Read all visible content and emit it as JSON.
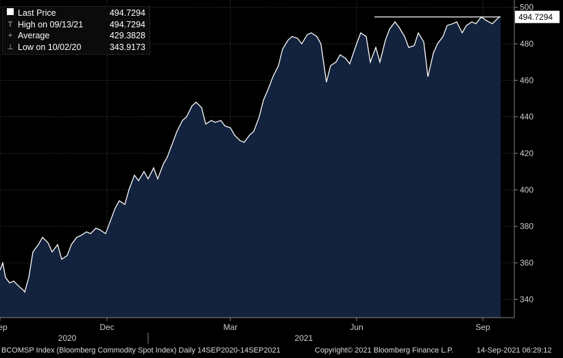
{
  "legend": [
    {
      "marker": "square",
      "label": "Last Price",
      "value": "494.7294"
    },
    {
      "marker": "T",
      "label": "High on 09/13/21",
      "value": "494.7294"
    },
    {
      "marker": "+",
      "label": "Average",
      "value": "429.3828"
    },
    {
      "marker": "⊥",
      "label": "Low on 10/02/20",
      "value": "343.9173"
    }
  ],
  "last_price_tag": "494.7294",
  "footer": {
    "left": "BCOMSP Index (Bloomberg Commodity Spot Index)  Daily 14SEP2020-14SEP2021",
    "copyright": "Copyright© 2021 Bloomberg Finance L.P.",
    "timestamp": "14-Sep-2021 06:29:12"
  },
  "colors": {
    "background": "#000000",
    "area_fill": "#13223d",
    "line": "#ffffff",
    "grid": "#4a4a4a"
  },
  "chart_data": {
    "type": "area",
    "ylim": [
      330,
      504
    ],
    "y_ticks": [
      340,
      360,
      380,
      400,
      420,
      440,
      460,
      480,
      500
    ],
    "x_ticks": [
      {
        "label": "Sep",
        "date": "2020-09-14"
      },
      {
        "label": "Dec",
        "date": "2020-12-01"
      },
      {
        "label": "Mar",
        "date": "2021-03-01"
      },
      {
        "label": "Jun",
        "date": "2021-06-01"
      },
      {
        "label": "Sep",
        "date": "2021-09-01"
      }
    ],
    "year_labels": [
      {
        "label": "2020"
      },
      {
        "label": "2021"
      }
    ],
    "x_range": [
      "2020-09-14",
      "2021-09-14"
    ],
    "high_line": 494.7294,
    "grid": true,
    "series": [
      {
        "x": [
          "2020-09-14",
          "2020-09-16",
          "2020-09-18",
          "2020-09-21",
          "2020-09-24",
          "2020-09-28",
          "2020-10-01",
          "2020-10-02",
          "2020-10-05",
          "2020-10-08",
          "2020-10-12",
          "2020-10-15",
          "2020-10-19",
          "2020-10-22",
          "2020-10-26",
          "2020-10-29",
          "2020-11-02",
          "2020-11-05",
          "2020-11-09",
          "2020-11-12",
          "2020-11-16",
          "2020-11-19",
          "2020-11-23",
          "2020-11-26",
          "2020-11-30",
          "2020-12-03",
          "2020-12-07",
          "2020-12-10",
          "2020-12-14",
          "2020-12-17",
          "2020-12-21",
          "2020-12-24",
          "2020-12-28",
          "2020-12-31",
          "2021-01-04",
          "2021-01-07",
          "2021-01-11",
          "2021-01-14",
          "2021-01-18",
          "2021-01-21",
          "2021-01-25",
          "2021-01-28",
          "2021-02-01",
          "2021-02-04",
          "2021-02-08",
          "2021-02-11",
          "2021-02-15",
          "2021-02-18",
          "2021-02-22",
          "2021-02-25",
          "2021-03-01",
          "2021-03-04",
          "2021-03-08",
          "2021-03-11",
          "2021-03-15",
          "2021-03-18",
          "2021-03-22",
          "2021-03-25",
          "2021-03-29",
          "2021-04-01",
          "2021-04-05",
          "2021-04-08",
          "2021-04-12",
          "2021-04-15",
          "2021-04-19",
          "2021-04-22",
          "2021-04-26",
          "2021-04-29",
          "2021-05-03",
          "2021-05-06",
          "2021-05-10",
          "2021-05-13",
          "2021-05-17",
          "2021-05-20",
          "2021-05-24",
          "2021-05-27",
          "2021-06-01",
          "2021-06-04",
          "2021-06-08",
          "2021-06-11",
          "2021-06-15",
          "2021-06-18",
          "2021-06-22",
          "2021-06-25",
          "2021-06-29",
          "2021-07-02",
          "2021-07-06",
          "2021-07-09",
          "2021-07-13",
          "2021-07-16",
          "2021-07-20",
          "2021-07-23",
          "2021-07-27",
          "2021-07-30",
          "2021-08-03",
          "2021-08-06",
          "2021-08-10",
          "2021-08-13",
          "2021-08-17",
          "2021-08-20",
          "2021-08-24",
          "2021-08-27",
          "2021-08-31",
          "2021-09-03",
          "2021-09-08",
          "2021-09-13",
          "2021-09-14"
        ],
        "values": [
          356,
          360,
          352,
          349,
          350,
          347,
          345,
          344,
          352,
          366,
          370,
          374,
          371,
          366,
          370,
          362,
          364,
          370,
          374,
          375,
          377,
          376,
          379,
          378,
          376,
          382,
          390,
          394,
          392,
          400,
          408,
          405,
          410,
          406,
          412,
          406,
          414,
          418,
          426,
          432,
          438,
          440,
          446,
          448,
          445,
          436,
          438,
          437,
          438,
          435,
          434,
          430,
          427,
          426,
          430,
          432,
          440,
          449,
          456,
          462,
          468,
          477,
          482,
          484,
          483,
          480,
          485,
          486,
          484,
          480,
          459,
          468,
          470,
          474,
          472,
          469,
          480,
          486,
          484,
          470,
          478,
          470,
          482,
          488,
          492,
          489,
          484,
          478,
          479,
          486,
          481,
          462,
          475,
          480,
          484,
          490,
          491,
          492,
          486,
          490,
          492,
          491,
          494.7294,
          493,
          491,
          494.7294,
          494.7294
        ]
      }
    ]
  }
}
